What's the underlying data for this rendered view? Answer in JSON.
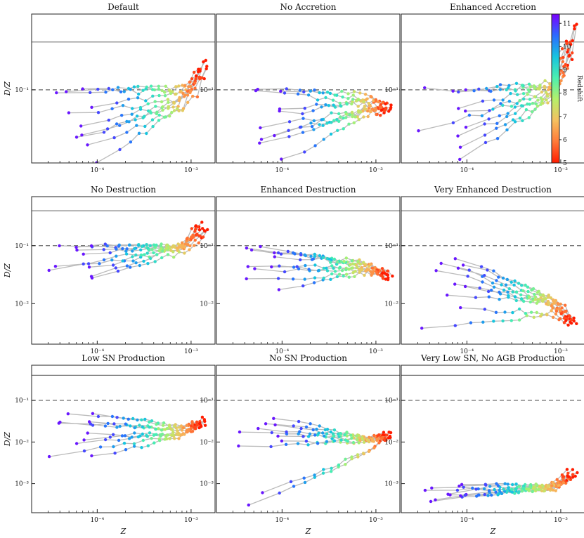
{
  "chart_data": {
    "type": "scatter",
    "description_xlabel": "Z",
    "ylabel": "D/Z",
    "xscale": "log",
    "yscale": "log",
    "xlim": [
      2e-05,
      0.0018
    ],
    "xticks": [
      {
        "value": 0.0001,
        "label": "10⁻⁴"
      },
      {
        "value": 0.001,
        "label": "10⁻³"
      }
    ],
    "colorbar": {
      "label": "Redshift",
      "min": 5,
      "max": 11.4,
      "ticks": [
        5,
        6,
        7,
        8,
        9,
        10,
        11
      ],
      "tick_labels": [
        "5",
        "6",
        "7",
        "8",
        "9",
        "10",
        "11"
      ],
      "colormap": [
        "#7a00ff",
        "#2c6bff",
        "#17c4e0",
        "#4cf0b0",
        "#b5f06a",
        "#f5c060",
        "#ff7a3a",
        "#ff1c00"
      ]
    },
    "reference_lines": {
      "solid_y": 0.4,
      "dashed_y": 0.1
    },
    "rows": [
      {
        "ylim": [
          0.012,
          0.9
        ],
        "yticks": [
          {
            "value": 0.1,
            "label": "10⁻¹"
          }
        ]
      },
      {
        "ylim": [
          0.002,
          0.7
        ],
        "yticks": [
          {
            "value": 0.1,
            "label": "10⁻¹"
          },
          {
            "value": 0.01,
            "label": "10⁻²"
          }
        ]
      },
      {
        "ylim": [
          0.0002,
          0.7
        ],
        "yticks": [
          {
            "value": 0.1,
            "label": "10⁻¹"
          },
          {
            "value": 0.01,
            "label": "10⁻²"
          },
          {
            "value": 0.001,
            "label": "10⁻³"
          }
        ]
      }
    ],
    "panels": [
      {
        "title": "Default",
        "row": 0,
        "col": 0,
        "start_dd": [
          0.1,
          0.098,
          0.035,
          0.025,
          0.05,
          0.013,
          0.06,
          0.028,
          0.1,
          0.02
        ],
        "end_dd": 0.09,
        "high_z_trend": 3.5
      },
      {
        "title": "No Accretion",
        "row": 0,
        "col": 1,
        "start_dd": [
          0.1,
          0.098,
          0.035,
          0.025,
          0.05,
          0.013,
          0.06,
          0.028,
          0.1,
          0.02
        ],
        "end_dd": 0.07,
        "high_z_trend": -1.0
      },
      {
        "title": "Enhanced Accretion",
        "row": 0,
        "col": 2,
        "start_dd": [
          0.1,
          0.098,
          0.035,
          0.025,
          0.05,
          0.013,
          0.06,
          0.028,
          0.1,
          0.02
        ],
        "end_dd": 0.12,
        "high_z_trend": 6.5
      },
      {
        "title": "No Destruction",
        "row": 1,
        "col": 0,
        "start_dd": [
          0.1,
          0.095,
          0.04,
          0.038,
          0.07,
          0.03,
          0.08,
          0.028,
          0.1,
          0.045
        ],
        "end_dd": 0.11,
        "high_z_trend": 3.5
      },
      {
        "title": "Enhanced Destruction",
        "row": 1,
        "col": 1,
        "start_dd": [
          0.095,
          0.09,
          0.045,
          0.04,
          0.08,
          0.017,
          0.07,
          0.025,
          0.085,
          0.04
        ],
        "end_dd": 0.04,
        "high_z_trend": -1.5
      },
      {
        "title": "Very Enhanced Destruction",
        "row": 1,
        "col": 2,
        "start_dd": [
          0.065,
          0.05,
          0.02,
          0.02,
          0.04,
          0.0035,
          0.04,
          0.008,
          0.05,
          0.015
        ],
        "end_dd": 0.008,
        "high_z_trend": -2.5
      },
      {
        "title": "Low SN Production",
        "row": 2,
        "col": 0,
        "start_dd": [
          0.05,
          0.03,
          0.01,
          0.0045,
          0.03,
          0.0045,
          0.05,
          0.015,
          0.03,
          0.012
        ],
        "end_dd": 0.018,
        "high_z_trend": 2.5
      },
      {
        "title": "No SN Production",
        "row": 2,
        "col": 1,
        "start_dd": [
          0.04,
          0.018,
          0.008,
          0.0003,
          0.03,
          0.0006,
          0.02,
          0.01,
          0.025,
          0.015
        ],
        "end_dd": 0.01,
        "high_z_trend": 2.0
      },
      {
        "title": "Very Low SN, No AGB Production",
        "row": 2,
        "col": 2,
        "start_dd": [
          0.001,
          0.0006,
          0.0005,
          0.0004,
          0.0008,
          0.0005,
          0.0009,
          0.0004,
          0.0007,
          0.0006
        ],
        "end_dd": 0.0009,
        "high_z_trend": 3.0
      }
    ]
  }
}
